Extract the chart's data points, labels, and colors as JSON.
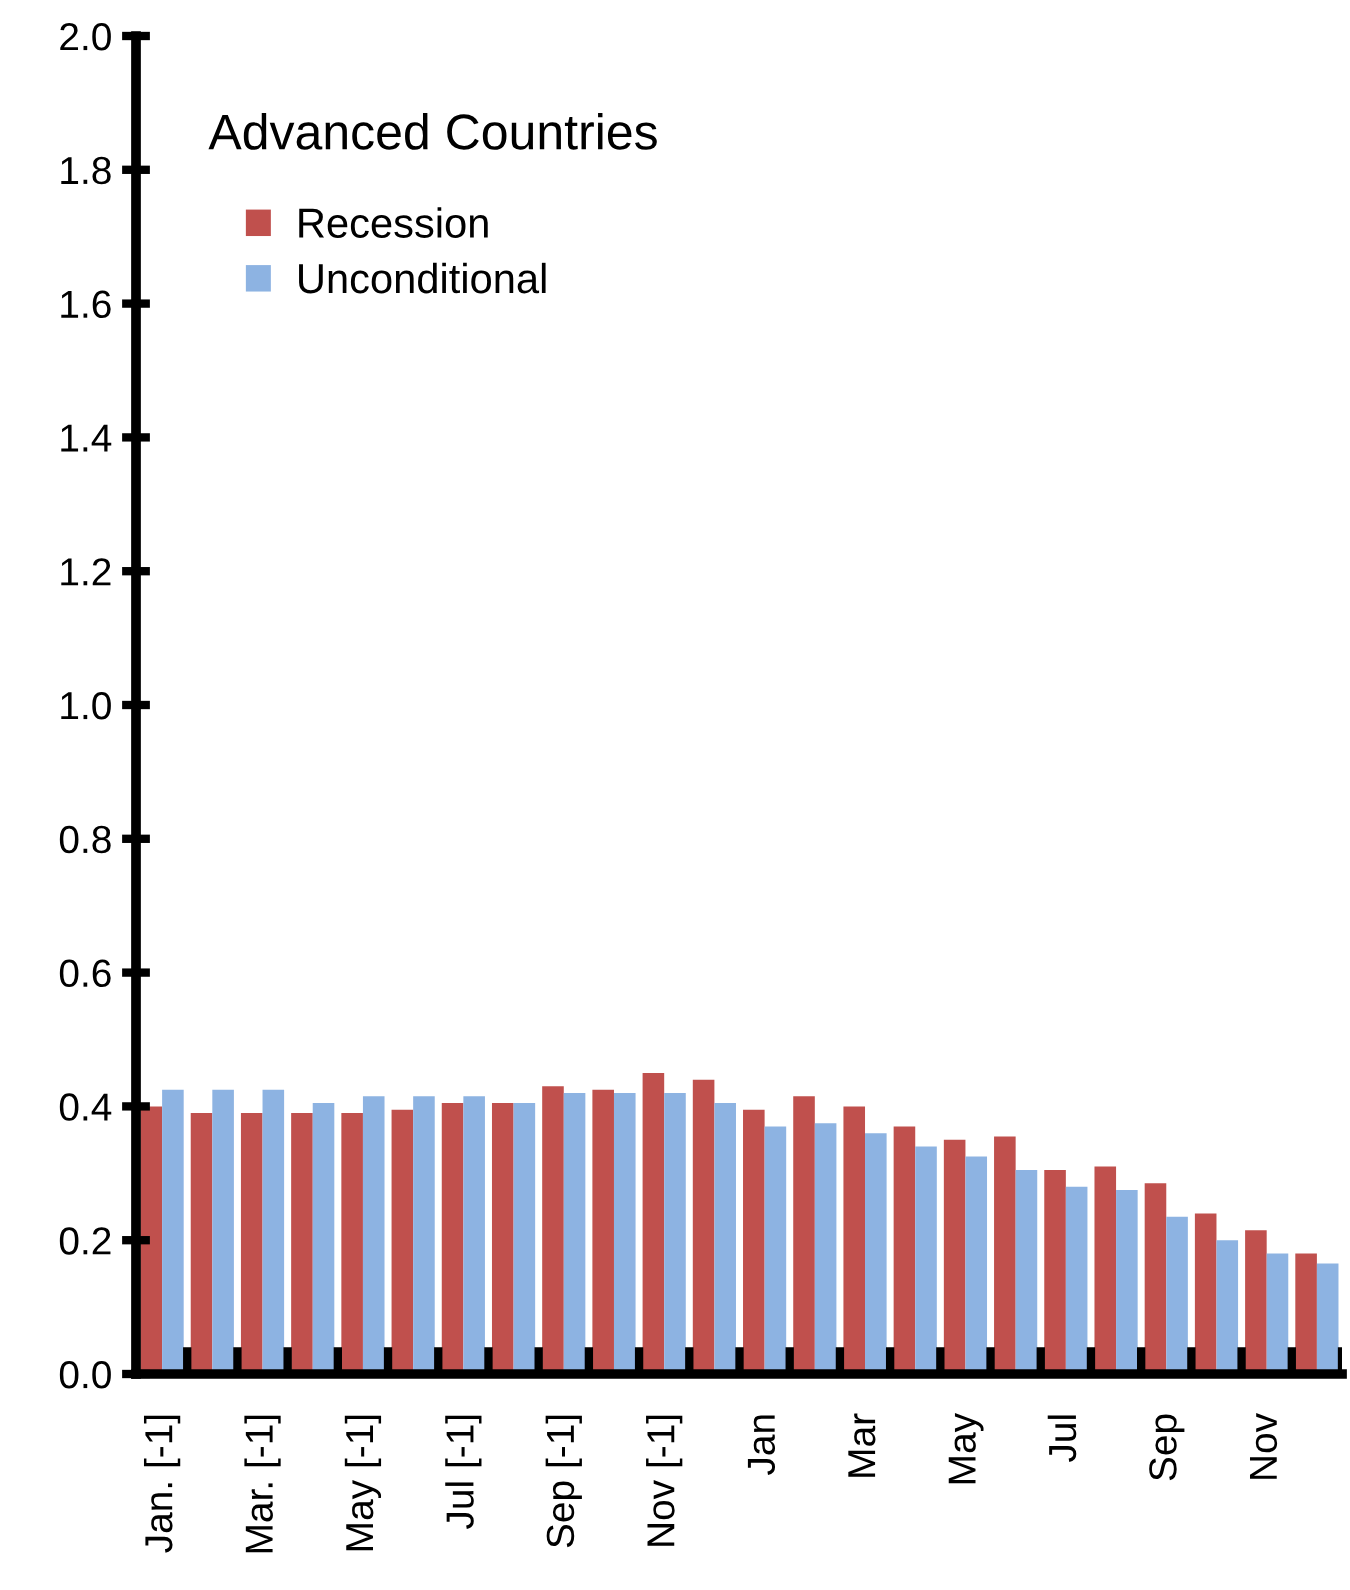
{
  "chart_data": {
    "type": "bar",
    "title": "Advanced Countries",
    "categories": [
      "Jan. [-1]",
      null,
      "Mar. [-1]",
      null,
      "May [-1]",
      null,
      "Jul [-1]",
      null,
      "Sep [-1]",
      null,
      "Nov [-1]",
      null,
      "Jan",
      null,
      "Mar",
      null,
      "May",
      null,
      "Jul",
      null,
      "Sep",
      null,
      "Nov",
      null
    ],
    "series": [
      {
        "name": "Recession",
        "color": "#c0504d",
        "values": [
          0.4,
          0.39,
          0.39,
          0.39,
          0.39,
          0.395,
          0.405,
          0.405,
          0.43,
          0.425,
          0.45,
          0.44,
          0.395,
          0.415,
          0.4,
          0.37,
          0.35,
          0.355,
          0.305,
          0.31,
          0.285,
          0.24,
          0.215,
          0.18
        ]
      },
      {
        "name": "Unconditional",
        "color": "#8db3e2",
        "values": [
          0.425,
          0.425,
          0.425,
          0.405,
          0.415,
          0.415,
          0.415,
          0.405,
          0.42,
          0.42,
          0.42,
          0.405,
          0.37,
          0.375,
          0.36,
          0.34,
          0.325,
          0.305,
          0.28,
          0.275,
          0.235,
          0.2,
          0.18,
          0.165
        ]
      }
    ],
    "ylim": [
      0,
      2.0
    ],
    "yticks": [
      {
        "value": 0,
        "label": "0.0"
      },
      {
        "value": 0.2,
        "label": "0.2"
      },
      {
        "value": 0.4,
        "label": "0.4"
      },
      {
        "value": 0.6,
        "label": "0.6"
      },
      {
        "value": 0.8,
        "label": "0.8"
      },
      {
        "value": 1.0,
        "label": "1.0"
      },
      {
        "value": 1.2,
        "label": "1.2"
      },
      {
        "value": 1.4,
        "label": "1.4"
      },
      {
        "value": 1.6,
        "label": "1.6"
      },
      {
        "value": 1.8,
        "label": "1.8"
      },
      {
        "value": 2.0,
        "label": "2.0"
      }
    ],
    "grid": false,
    "legend": "top left"
  }
}
